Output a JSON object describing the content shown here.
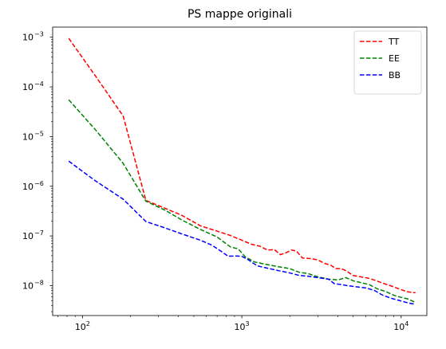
{
  "chart_data": {
    "type": "line",
    "title": "PS mappe originali",
    "xlabel": "",
    "ylabel": "",
    "xscale": "log",
    "yscale": "log",
    "xlim": [
      65,
      14500
    ],
    "ylim": [
      2.5e-09,
      0.0016
    ],
    "grid": false,
    "legend_position": "top-right",
    "x_ticks": [
      {
        "value": 100,
        "base": "10",
        "exp": "2"
      },
      {
        "value": 1000,
        "base": "10",
        "exp": "3"
      },
      {
        "value": 10000,
        "base": "10",
        "exp": "4"
      }
    ],
    "y_ticks": [
      {
        "value": 1e-08,
        "base": "10",
        "exp": "−8"
      },
      {
        "value": 1e-07,
        "base": "10",
        "exp": "−7"
      },
      {
        "value": 1e-06,
        "base": "10",
        "exp": "−6"
      },
      {
        "value": 1e-05,
        "base": "10",
        "exp": "−5"
      },
      {
        "value": 0.0001,
        "base": "10",
        "exp": "−4"
      },
      {
        "value": 0.001,
        "base": "10",
        "exp": "−3"
      }
    ],
    "series": [
      {
        "name": "TT",
        "color": "#ff0000",
        "style": "dashed",
        "points": [
          [
            82,
            0.00095
          ],
          [
            120,
            0.00017
          ],
          [
            180,
            2.6e-05
          ],
          [
            250,
            5.2e-07
          ],
          [
            330,
            3.6e-07
          ],
          [
            420,
            2.6e-07
          ],
          [
            550,
            1.6e-07
          ],
          [
            700,
            1.25e-07
          ],
          [
            850,
            1.02e-07
          ],
          [
            1000,
            8.2e-08
          ],
          [
            1150,
            6.8e-08
          ],
          [
            1300,
            6.2e-08
          ],
          [
            1450,
            5.2e-08
          ],
          [
            1600,
            5.3e-08
          ],
          [
            1750,
            4.2e-08
          ],
          [
            1900,
            4.6e-08
          ],
          [
            2050,
            5.2e-08
          ],
          [
            2200,
            5e-08
          ],
          [
            2400,
            3.6e-08
          ],
          [
            2700,
            3.5e-08
          ],
          [
            3000,
            3.3e-08
          ],
          [
            3300,
            2.8e-08
          ],
          [
            3600,
            2.6e-08
          ],
          [
            3900,
            2.2e-08
          ],
          [
            4200,
            2.2e-08
          ],
          [
            4500,
            2e-08
          ],
          [
            5000,
            1.6e-08
          ],
          [
            5600,
            1.5e-08
          ],
          [
            6300,
            1.4e-08
          ],
          [
            7000,
            1.25e-08
          ],
          [
            7800,
            1.1e-08
          ],
          [
            8700,
            9.8e-09
          ],
          [
            9700,
            8.6e-09
          ],
          [
            10800,
            7.6e-09
          ],
          [
            11700,
            7.3e-09
          ],
          [
            12300,
            7.2e-09
          ]
        ]
      },
      {
        "name": "EE",
        "color": "#008000",
        "style": "dashed",
        "points": [
          [
            82,
            5.5e-05
          ],
          [
            120,
            1.4e-05
          ],
          [
            180,
            2.9e-06
          ],
          [
            250,
            5e-07
          ],
          [
            330,
            3.3e-07
          ],
          [
            420,
            2.1e-07
          ],
          [
            550,
            1.35e-07
          ],
          [
            700,
            9.5e-08
          ],
          [
            850,
            6e-08
          ],
          [
            950,
            5.5e-08
          ],
          [
            1050,
            3.8e-08
          ],
          [
            1200,
            3e-08
          ],
          [
            1400,
            2.7e-08
          ],
          [
            1700,
            2.4e-08
          ],
          [
            2000,
            2.2e-08
          ],
          [
            2300,
            1.85e-08
          ],
          [
            2600,
            1.75e-08
          ],
          [
            3000,
            1.5e-08
          ],
          [
            3500,
            1.35e-08
          ],
          [
            4000,
            1.3e-08
          ],
          [
            4500,
            1.45e-08
          ],
          [
            5000,
            1.25e-08
          ],
          [
            5600,
            1.15e-08
          ],
          [
            6300,
            1.05e-08
          ],
          [
            7100,
            8.6e-09
          ],
          [
            8000,
            7.6e-09
          ],
          [
            9000,
            6.4e-09
          ],
          [
            10000,
            5.8e-09
          ],
          [
            11000,
            5.4e-09
          ],
          [
            12300,
            4.6e-09
          ]
        ]
      },
      {
        "name": "BB",
        "color": "#0000ff",
        "style": "dashed",
        "points": [
          [
            82,
            3.2e-06
          ],
          [
            120,
            1.3e-06
          ],
          [
            180,
            5.5e-07
          ],
          [
            250,
            1.95e-07
          ],
          [
            330,
            1.45e-07
          ],
          [
            420,
            1.1e-07
          ],
          [
            550,
            8.2e-08
          ],
          [
            650,
            6.5e-08
          ],
          [
            750,
            4.8e-08
          ],
          [
            820,
            3.9e-08
          ],
          [
            900,
            3.95e-08
          ],
          [
            1000,
            3.9e-08
          ],
          [
            1100,
            3.3e-08
          ],
          [
            1250,
            2.5e-08
          ],
          [
            1400,
            2.3e-08
          ],
          [
            1700,
            2e-08
          ],
          [
            2000,
            1.8e-08
          ],
          [
            2300,
            1.6e-08
          ],
          [
            2600,
            1.55e-08
          ],
          [
            3000,
            1.45e-08
          ],
          [
            3500,
            1.35e-08
          ],
          [
            3800,
            1.1e-08
          ],
          [
            4200,
            1.05e-08
          ],
          [
            4600,
            1e-08
          ],
          [
            5200,
            9.5e-09
          ],
          [
            6000,
            9e-09
          ],
          [
            6800,
            8e-09
          ],
          [
            7600,
            6.5e-09
          ],
          [
            8600,
            5.6e-09
          ],
          [
            9800,
            5e-09
          ],
          [
            11000,
            4.5e-09
          ],
          [
            12300,
            4.2e-09
          ]
        ]
      }
    ]
  }
}
